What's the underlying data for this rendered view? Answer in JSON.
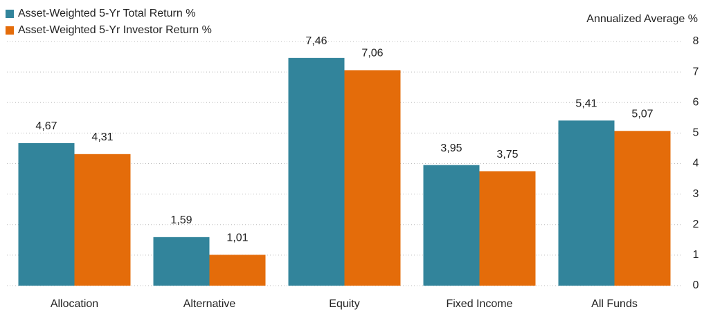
{
  "chart_data": {
    "type": "bar",
    "y_axis_label": "Annualized Average %",
    "categories": [
      "Allocation",
      "Alternative",
      "Equity",
      "Fixed Income",
      "All Funds"
    ],
    "series": [
      {
        "name": "Asset-Weighted 5-Yr Total Return %",
        "color": "#32849b",
        "values": [
          4.67,
          1.59,
          7.46,
          3.95,
          5.41
        ],
        "value_labels": [
          "4,67",
          "1,59",
          "7,46",
          "3,95",
          "5,41"
        ]
      },
      {
        "name": "Asset-Weighted 5-Yr Investor Return %",
        "color": "#e46c0a",
        "values": [
          4.31,
          1.01,
          7.06,
          3.75,
          5.07
        ],
        "value_labels": [
          "4,31",
          "1,01",
          "7,06",
          "3,75",
          "5,07"
        ]
      }
    ],
    "ylim": [
      0,
      8
    ],
    "yticks": [
      0,
      1,
      2,
      3,
      4,
      5,
      6,
      7,
      8
    ],
    "grid": true,
    "y_axis_side": "right",
    "legend": "top-left"
  }
}
